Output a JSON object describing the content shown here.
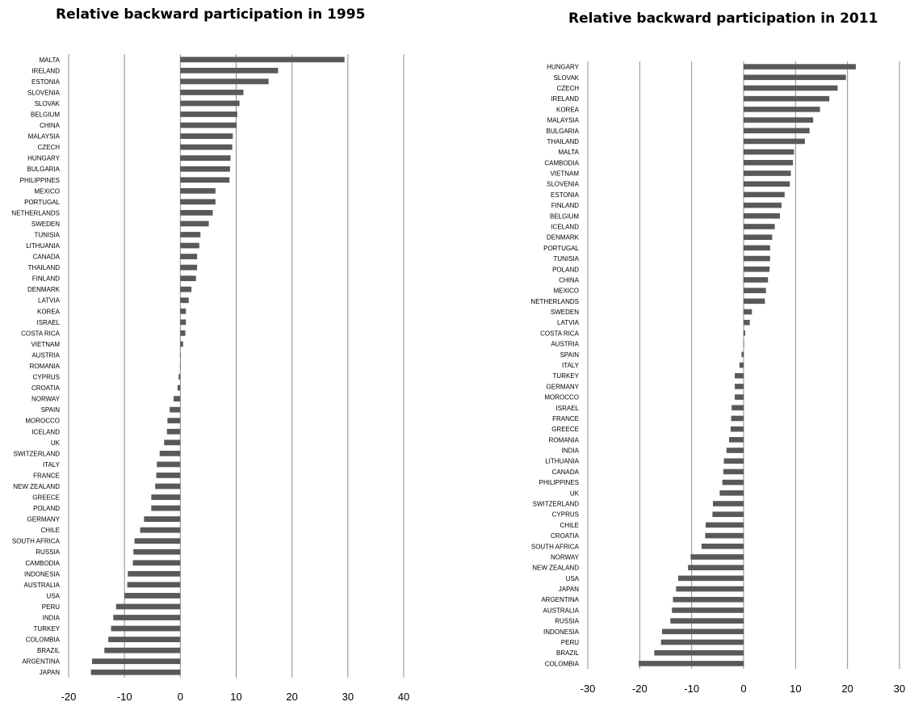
{
  "chart_data": [
    {
      "type": "bar",
      "orientation": "horizontal",
      "title": "Relative backward participation  in 1995",
      "xlabel": "",
      "ylabel": "",
      "xlim": [
        -20,
        40
      ],
      "ticks": [
        "-20",
        "-10",
        "0",
        "10",
        "20",
        "30",
        "40"
      ],
      "tick_values": [
        -20,
        -10,
        0,
        10,
        20,
        30,
        40
      ],
      "grid": "vertical",
      "legend": "none",
      "bar_color": "#595959",
      "categories": [
        "MALTA",
        "IRELAND",
        "ESTONIA",
        "SLOVENIA",
        "SLOVAK",
        "BELGIUM",
        "CHINA",
        "MALAYSIA",
        "CZECH",
        "HUNGARY",
        "BULGARIA",
        "PHILIPPINES",
        "MEXICO",
        "PORTUGAL",
        "NETHERLANDS",
        "SWEDEN",
        "TUNISIA",
        "LITHUANIA",
        "CANADA",
        "THAILAND",
        "FINLAND",
        "DENMARK",
        "LATVIA",
        "KOREA",
        "ISRAEL",
        "COSTA RICA",
        "VIETNAM",
        "AUSTRIA",
        "ROMANIA",
        "CYPRUS",
        "CROATIA",
        "NORWAY",
        "SPAIN",
        "MOROCCO",
        "ICELAND",
        "UK",
        "SWITZERLAND",
        "ITALY",
        "FRANCE",
        "NEW ZEALAND",
        "GREECE",
        "POLAND",
        "GERMANY",
        "CHILE",
        "SOUTH AFRICA",
        "RUSSIA",
        "CAMBODIA",
        "INDONESIA",
        "AUSTRALIA",
        "USA",
        "PERU",
        "INDIA",
        "TURKEY",
        "COLOMBIA",
        "BRAZIL",
        "ARGENTINA",
        "JAPAN"
      ],
      "values": [
        29.4,
        17.5,
        15.8,
        11.3,
        10.6,
        10.2,
        10.1,
        9.4,
        9.3,
        9.0,
        8.9,
        8.8,
        6.3,
        6.3,
        5.8,
        5.1,
        3.6,
        3.4,
        3.0,
        3.0,
        2.8,
        2.0,
        1.5,
        1.0,
        1.0,
        0.9,
        0.5,
        0.1,
        0.0,
        -0.3,
        -0.5,
        -1.2,
        -1.9,
        -2.3,
        -2.4,
        -2.9,
        -3.7,
        -4.2,
        -4.3,
        -4.5,
        -5.2,
        -5.2,
        -6.5,
        -7.2,
        -8.2,
        -8.4,
        -8.5,
        -9.4,
        -9.5,
        -10.0,
        -11.5,
        -12.0,
        -12.4,
        -12.9,
        -13.6,
        -15.8,
        -16.0
      ]
    },
    {
      "type": "bar",
      "orientation": "horizontal",
      "title": "Relative backward participation  in 2011",
      "xlabel": "",
      "ylabel": "",
      "xlim": [
        -30,
        30
      ],
      "ticks": [
        "-30",
        "-20",
        "-10",
        "0",
        "10",
        "20",
        "30"
      ],
      "tick_values": [
        -30,
        -20,
        -10,
        0,
        10,
        20,
        30
      ],
      "grid": "vertical",
      "legend": "none",
      "bar_color": "#595959",
      "categories": [
        "HUNGARY",
        "SLOVAK",
        "CZECH",
        "IRELAND",
        "KOREA",
        "MALAYSIA",
        "BULGARIA",
        "THAILAND",
        "MALTA",
        "CAMBODIA",
        "VIETNAM",
        "SLOVENIA",
        "ESTONIA",
        "FINLAND",
        "BELGIUM",
        "ICELAND",
        "DENMARK",
        "PORTUGAL",
        "TUNISIA",
        "POLAND",
        "CHINA",
        "MEXICO",
        "NETHERLANDS",
        "SWEDEN",
        "LATVIA",
        "COSTA RICA",
        "AUSTRIA",
        "SPAIN",
        "ITALY",
        "TURKEY",
        "GERMANY",
        "MOROCCO",
        "ISRAEL",
        "FRANCE",
        "GREECE",
        "ROMANIA",
        "INDIA",
        "LITHUANIA",
        "CANADA",
        "PHILIPPINES",
        "UK",
        "SWITZERLAND",
        "CYPRUS",
        "CHILE",
        "CROATIA",
        "SOUTH AFRICA",
        "NORWAY",
        "NEW ZEALAND",
        "USA",
        "JAPAN",
        "ARGENTINA",
        "AUSTRALIA",
        "RUSSIA",
        "INDONESIA",
        "PERU",
        "BRAZIL",
        "COLOMBIA"
      ],
      "values": [
        21.6,
        19.7,
        18.1,
        16.5,
        14.7,
        13.4,
        12.7,
        11.8,
        9.7,
        9.5,
        9.1,
        8.9,
        7.9,
        7.3,
        7.0,
        6.0,
        5.5,
        5.1,
        5.1,
        5.0,
        4.7,
        4.3,
        4.1,
        1.6,
        1.2,
        0.3,
        0.1,
        -0.4,
        -0.8,
        -1.7,
        -1.7,
        -1.7,
        -2.3,
        -2.4,
        -2.5,
        -2.8,
        -3.3,
        -3.8,
        -3.9,
        -4.1,
        -4.6,
        -5.9,
        -6.0,
        -7.3,
        -7.4,
        -8.1,
        -10.2,
        -10.7,
        -12.6,
        -13.0,
        -13.6,
        -13.8,
        -14.1,
        -15.7,
        -15.9,
        -17.2,
        -20.2
      ]
    }
  ]
}
